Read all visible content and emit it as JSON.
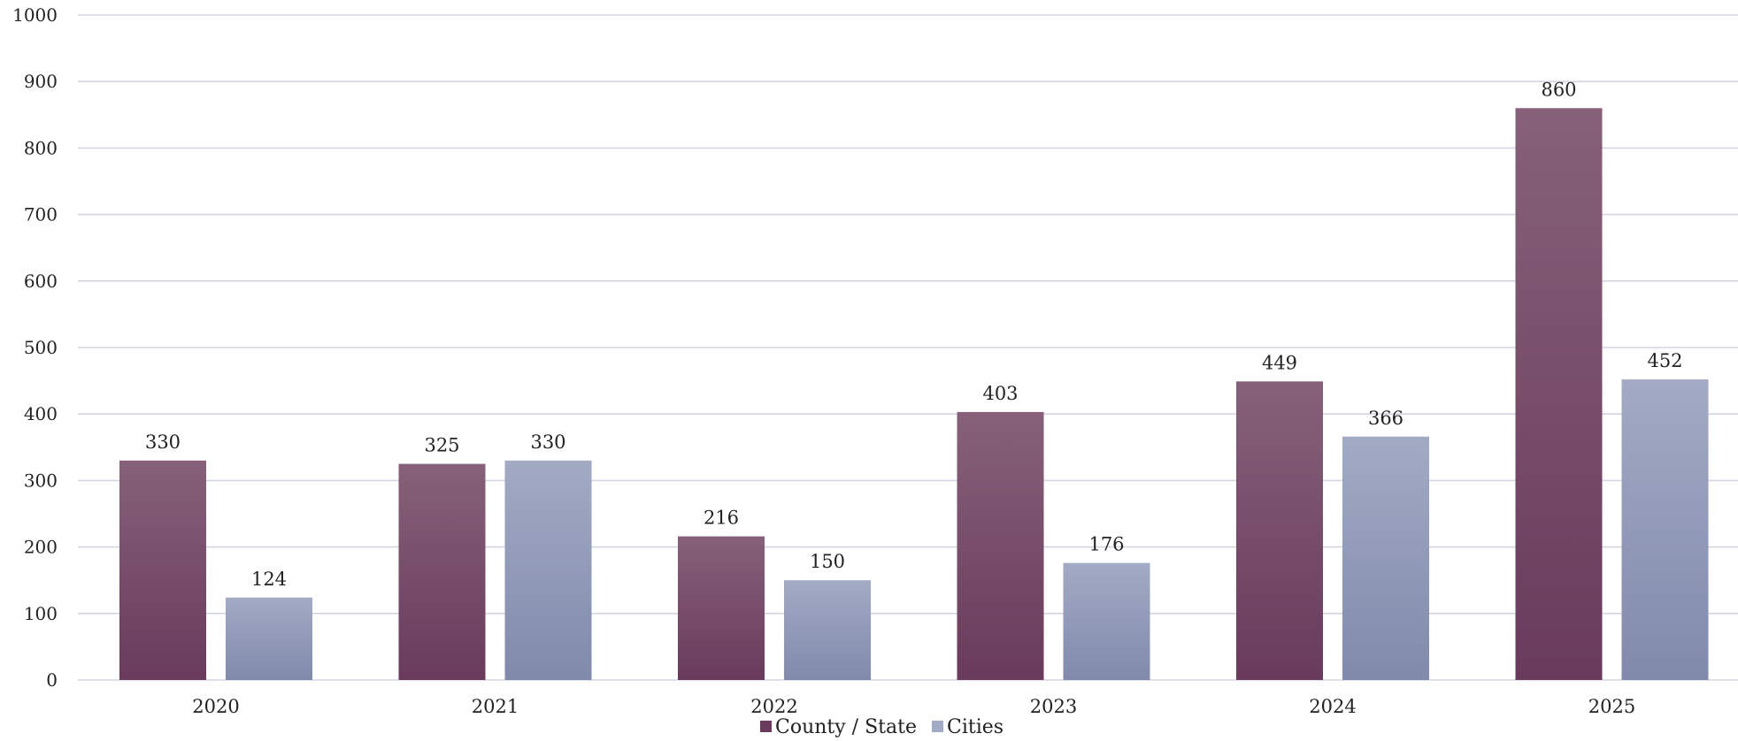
{
  "chart_data": {
    "type": "bar",
    "title": "",
    "xlabel": "",
    "ylabel": "",
    "ylim": [
      0,
      1000
    ],
    "yticks": [
      0,
      100,
      200,
      300,
      400,
      500,
      600,
      700,
      800,
      900,
      1000
    ],
    "grid": true,
    "legend_position": "bottom-center",
    "categories": [
      "2020",
      "2021",
      "2022",
      "2023",
      "2024",
      "2025"
    ],
    "series": [
      {
        "name": "County / State",
        "values": [
          330,
          325,
          216,
          403,
          449,
          860
        ],
        "color_top": "#866179",
        "color_bottom": "#693a5c"
      },
      {
        "name": "Cities",
        "values": [
          124,
          330,
          150,
          176,
          366,
          452
        ],
        "color_top": "#a2aac4",
        "color_bottom": "#818aac"
      }
    ],
    "gridline_color": "#d5d5e2",
    "text_color": "#222222"
  }
}
